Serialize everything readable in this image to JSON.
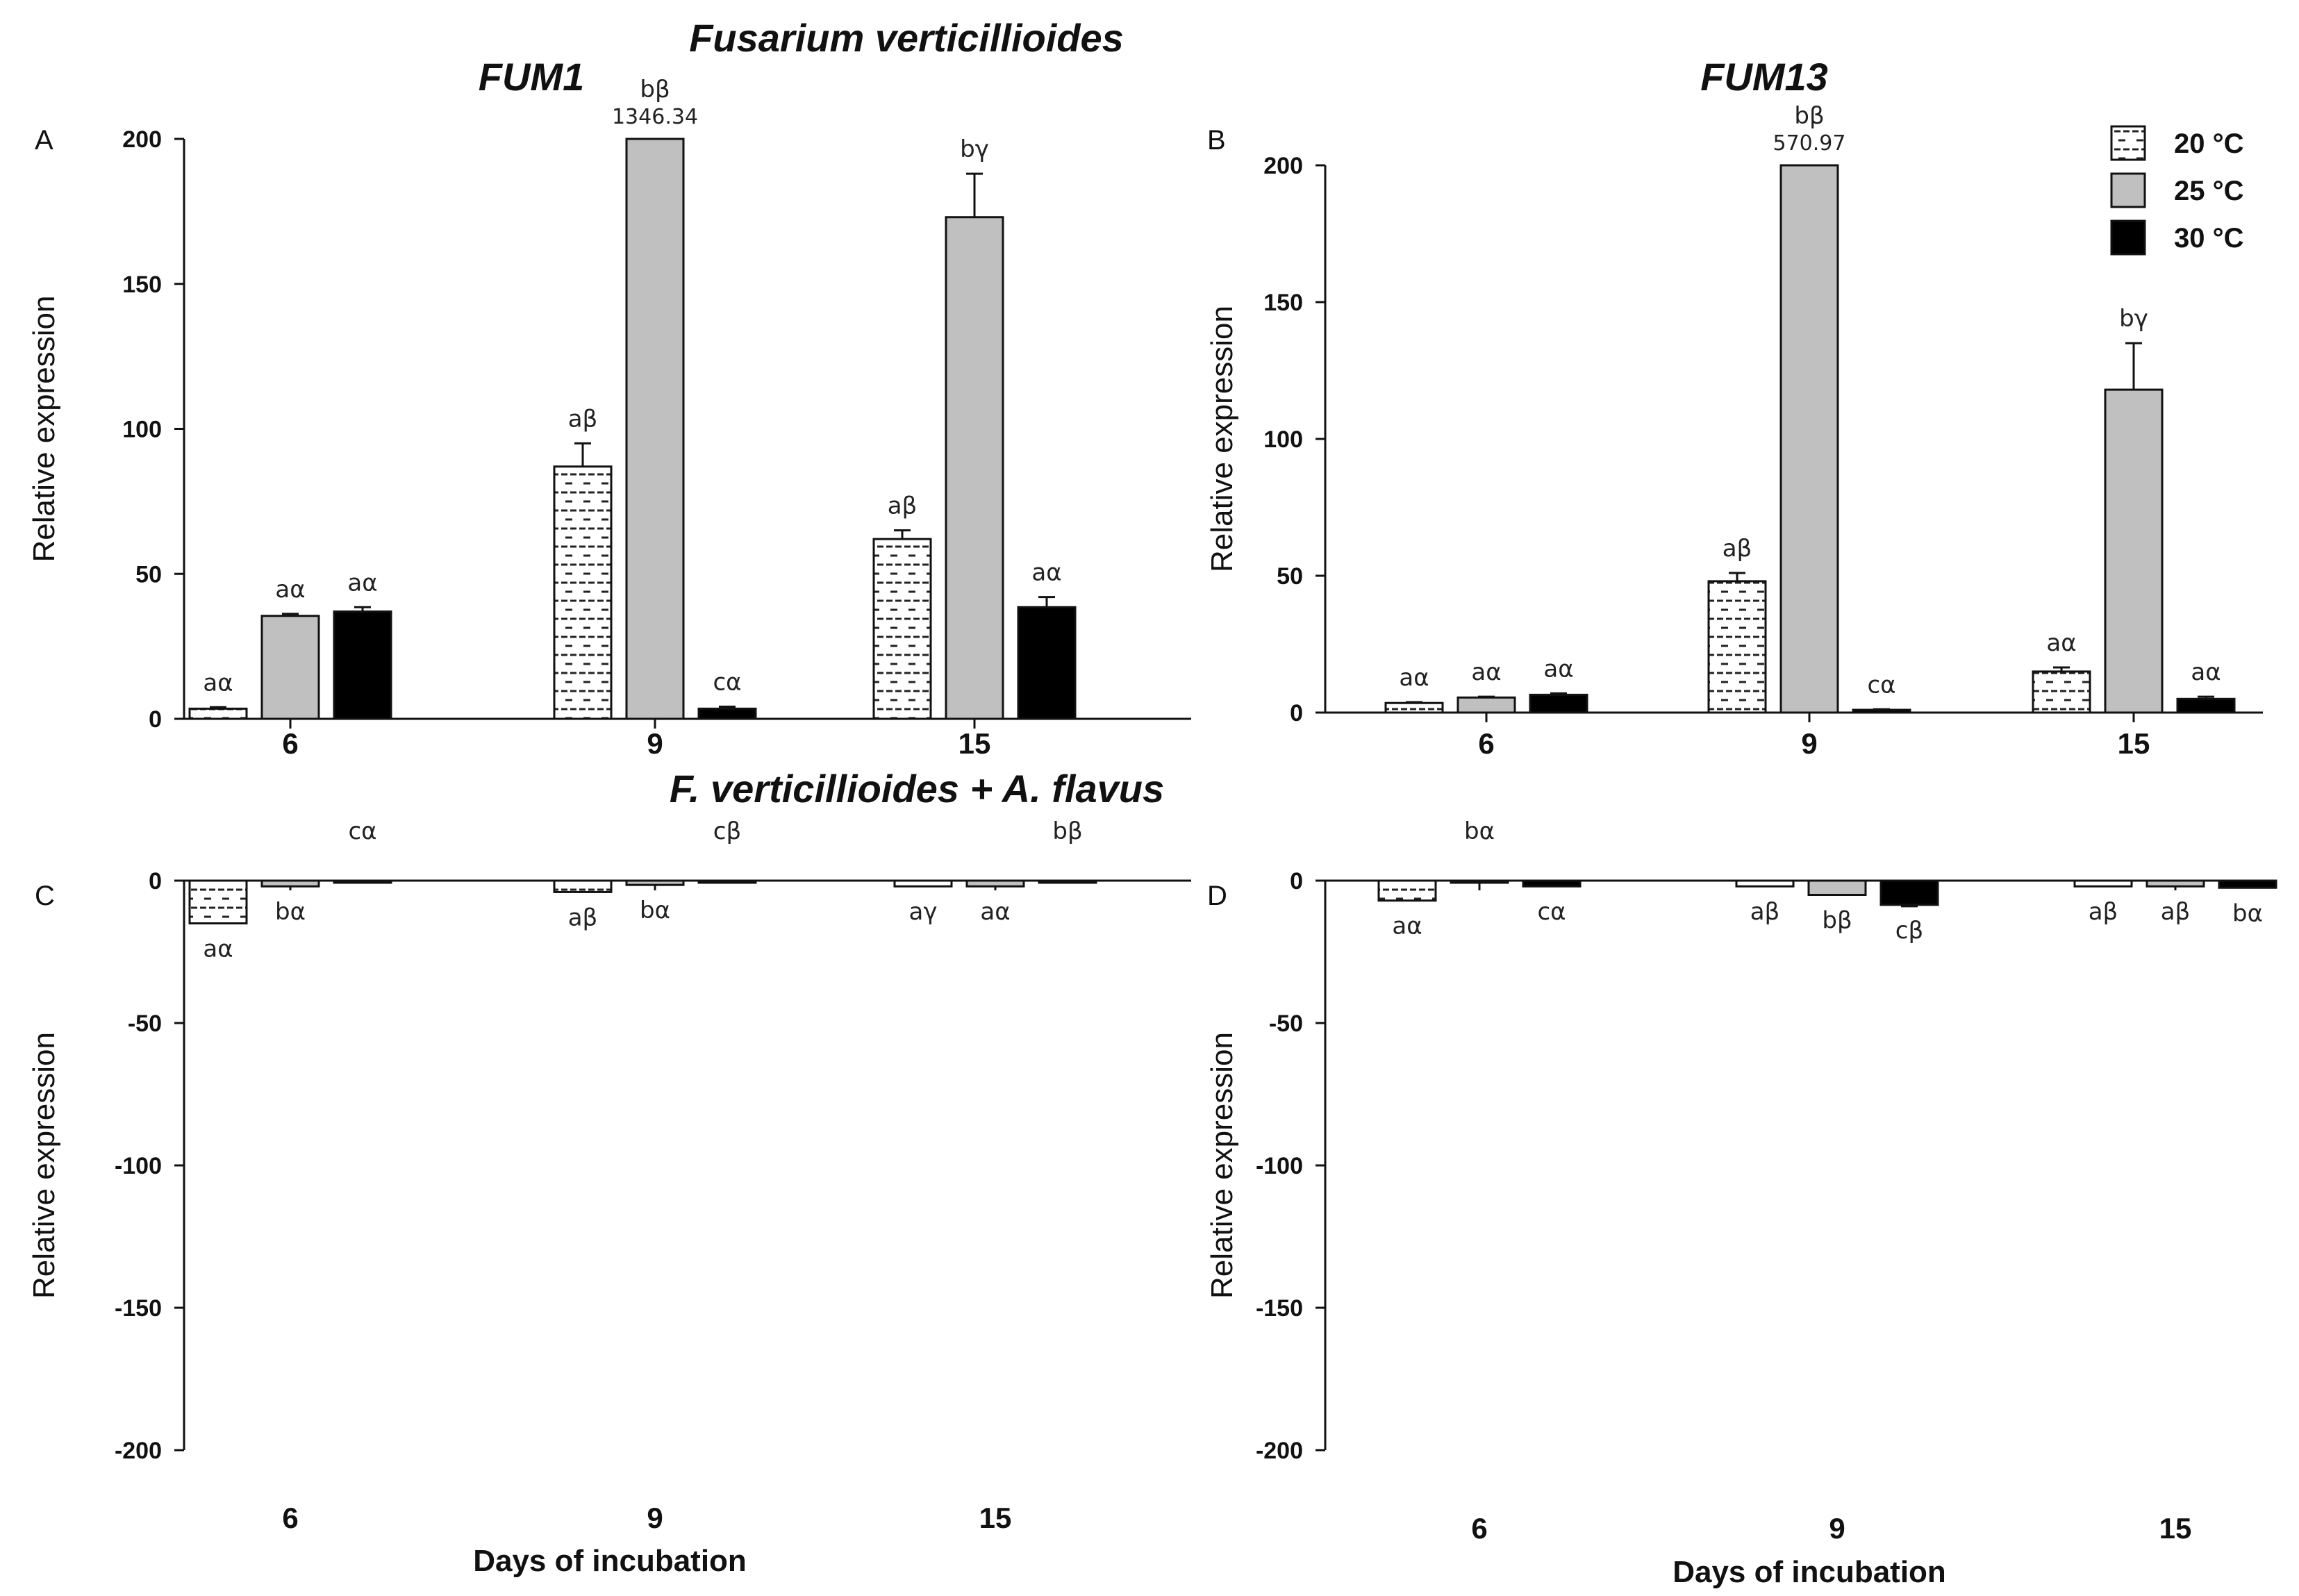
{
  "figure": {
    "title_main": "Fusarium verticillioides",
    "title_mixed": "F. verticillioides + A. flavus",
    "gene1": "FUM1",
    "gene2": "FUM13",
    "xlabel": "Days of incubation",
    "ylabel": "Relative expression"
  },
  "legend": [
    {
      "label": "20 °C",
      "fill": "dashed",
      "color": "#ffffff"
    },
    {
      "label": "25 °C",
      "fill": "solid",
      "color": "#c0c0c0"
    },
    {
      "label": "30 °C",
      "fill": "solid",
      "color": "#000000"
    }
  ],
  "chart_data": [
    {
      "type": "bar",
      "panel": "A",
      "gene": "FUM1",
      "categories": [
        "6",
        "9",
        "15"
      ],
      "ylim": [
        0,
        200
      ],
      "yticks": [
        0,
        50,
        100,
        150,
        200
      ],
      "ylabel": "Relative expression",
      "xlabel": "",
      "series": [
        {
          "name": "20 °C",
          "values": [
            3.5,
            87,
            62
          ],
          "errors": [
            0.5,
            8,
            3
          ],
          "labels": [
            "aα",
            "aβ",
            "aβ"
          ]
        },
        {
          "name": "25 °C",
          "values": [
            35.5,
            1346.34,
            173
          ],
          "errors": [
            0.7,
            0,
            15
          ],
          "labels": [
            "aα",
            "bβ",
            "bγ"
          ],
          "value_labels": [
            "",
            "1346.34",
            ""
          ]
        },
        {
          "name": "30 °C",
          "values": [
            37,
            3.5,
            38.5
          ],
          "errors": [
            1.5,
            0.7,
            3.5
          ],
          "labels": [
            "aα",
            "cα",
            "aα"
          ]
        }
      ]
    },
    {
      "type": "bar",
      "panel": "B",
      "gene": "FUM13",
      "categories": [
        "6",
        "9",
        "15"
      ],
      "ylim": [
        0,
        200
      ],
      "yticks": [
        0,
        50,
        100,
        150,
        200
      ],
      "ylabel": "Relative expression",
      "xlabel": "",
      "series": [
        {
          "name": "20 °C",
          "values": [
            3.5,
            48,
            15
          ],
          "errors": [
            0.3,
            3,
            1.5
          ],
          "labels": [
            "aα",
            "aβ",
            "aα"
          ]
        },
        {
          "name": "25 °C",
          "values": [
            5.5,
            570.97,
            118
          ],
          "errors": [
            0.3,
            0,
            17
          ],
          "labels": [
            "aα",
            "bβ",
            "bγ"
          ],
          "value_labels": [
            "",
            "570.97",
            ""
          ]
        },
        {
          "name": "30 °C",
          "values": [
            6.5,
            1,
            5
          ],
          "errors": [
            0.5,
            0.2,
            0.8
          ],
          "labels": [
            "aα",
            "cα",
            "aα"
          ]
        }
      ]
    },
    {
      "type": "bar",
      "panel": "C",
      "gene": "FUM1",
      "categories": [
        "6",
        "9",
        "15"
      ],
      "ylim": [
        -200,
        0
      ],
      "yticks": [
        0,
        -50,
        -100,
        -150,
        -200
      ],
      "ylabel": "Relative expression",
      "xlabel": "Days of incubation",
      "series": [
        {
          "name": "20 °C",
          "values": [
            -15,
            -4,
            -2
          ],
          "errors": [
            0,
            0,
            0
          ],
          "labels": [
            "aα",
            "aβ",
            "aγ"
          ]
        },
        {
          "name": "25 °C",
          "values": [
            -2,
            -1.5,
            -2
          ],
          "errors": [
            0,
            0,
            0
          ],
          "labels": [
            "bα",
            "bα",
            "aα"
          ]
        },
        {
          "name": "30 °C",
          "values": [
            0.8,
            0.2,
            0.1
          ],
          "errors": [
            0,
            0,
            0
          ],
          "labels": [
            "cα",
            "cβ",
            "bβ"
          ]
        }
      ]
    },
    {
      "type": "bar",
      "panel": "D",
      "gene": "FUM13",
      "categories": [
        "6",
        "9",
        "15"
      ],
      "ylim": [
        -200,
        0
      ],
      "yticks": [
        0,
        -50,
        -100,
        -150,
        -200
      ],
      "ylabel": "Relative expression",
      "xlabel": "Days of incubation",
      "series": [
        {
          "name": "20 °C",
          "values": [
            -7,
            -2,
            -2
          ],
          "errors": [
            0,
            0,
            0
          ],
          "labels": [
            "aα",
            "aβ",
            "aβ"
          ]
        },
        {
          "name": "25 °C",
          "values": [
            3,
            -5,
            -2
          ],
          "errors": [
            0.5,
            0,
            0
          ],
          "labels": [
            "bα",
            "bβ",
            "aβ"
          ]
        },
        {
          "name": "30 °C",
          "values": [
            -2,
            -8.5,
            -2.5
          ],
          "errors": [
            0,
            0.5,
            0
          ],
          "labels": [
            "cα",
            "cβ",
            "bα"
          ]
        }
      ]
    }
  ]
}
